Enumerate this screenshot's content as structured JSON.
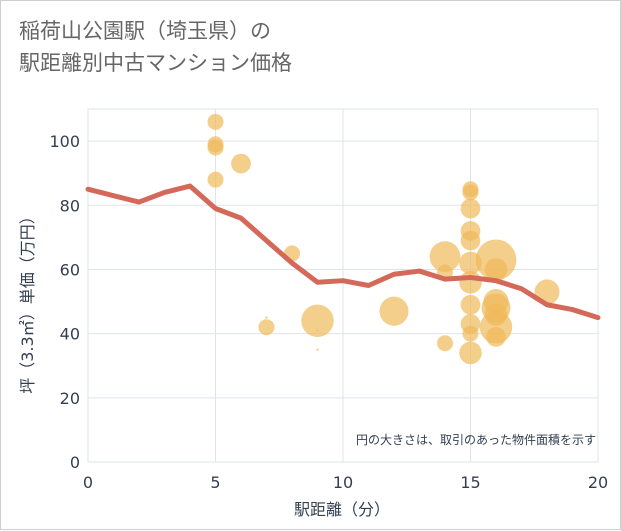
{
  "title": {
    "line1": "稲荷山公園駅（埼玉県）の",
    "line2": "駅距離別中古マンション価格"
  },
  "chart_data": {
    "type": "scatter",
    "title": "稲荷山公園駅（埼玉県）の駅距離別中古マンション価格",
    "xlabel": "駅距離（分）",
    "ylabel": "坪（3.3㎡）単価（万円）",
    "xlim": [
      0,
      20
    ],
    "ylim": [
      0,
      110
    ],
    "x_ticks": [
      0,
      5,
      10,
      15,
      20
    ],
    "y_ticks": [
      0,
      20,
      40,
      60,
      80,
      100
    ],
    "grid": true,
    "annotation": "円の大きさは、取引のあった物件面積を示す",
    "colors": {
      "bubble": "#f0b95a",
      "line": "#d4695a",
      "axis_text": "#333f50",
      "grid": "#dfe4ea"
    },
    "series": [
      {
        "type": "bubble",
        "points": [
          {
            "x": 5,
            "y": 106,
            "s": 1
          },
          {
            "x": 5,
            "y": 99,
            "s": 1
          },
          {
            "x": 5,
            "y": 98,
            "s": 1
          },
          {
            "x": 5,
            "y": 88,
            "s": 1
          },
          {
            "x": 6,
            "y": 93,
            "s": 2
          },
          {
            "x": 7,
            "y": 45,
            "s": 0.2
          },
          {
            "x": 7,
            "y": 42,
            "s": 1
          },
          {
            "x": 8,
            "y": 65,
            "s": 1
          },
          {
            "x": 9,
            "y": 44,
            "s": 8
          },
          {
            "x": 9,
            "y": 41,
            "s": 0.2
          },
          {
            "x": 9,
            "y": 35,
            "s": 0.2
          },
          {
            "x": 12,
            "y": 47,
            "s": 6
          },
          {
            "x": 14,
            "y": 64,
            "s": 7
          },
          {
            "x": 14,
            "y": 59,
            "s": 1
          },
          {
            "x": 14,
            "y": 37,
            "s": 1
          },
          {
            "x": 15,
            "y": 85,
            "s": 1
          },
          {
            "x": 15,
            "y": 84,
            "s": 1
          },
          {
            "x": 15,
            "y": 79,
            "s": 2
          },
          {
            "x": 15,
            "y": 72,
            "s": 2
          },
          {
            "x": 15,
            "y": 69,
            "s": 2
          },
          {
            "x": 15,
            "y": 62,
            "s": 3
          },
          {
            "x": 15,
            "y": 56,
            "s": 3
          },
          {
            "x": 15,
            "y": 49,
            "s": 2
          },
          {
            "x": 15,
            "y": 43,
            "s": 2
          },
          {
            "x": 15,
            "y": 40,
            "s": 1
          },
          {
            "x": 15,
            "y": 34,
            "s": 3
          },
          {
            "x": 16,
            "y": 63,
            "s": 14
          },
          {
            "x": 16,
            "y": 60,
            "s": 3
          },
          {
            "x": 16,
            "y": 50,
            "s": 4
          },
          {
            "x": 16,
            "y": 48,
            "s": 6
          },
          {
            "x": 16,
            "y": 46,
            "s": 3
          },
          {
            "x": 16,
            "y": 42,
            "s": 8
          },
          {
            "x": 16,
            "y": 39,
            "s": 2
          },
          {
            "x": 18,
            "y": 53,
            "s": 4
          }
        ]
      },
      {
        "type": "line",
        "x": [
          0,
          1,
          2,
          3,
          4,
          5,
          6,
          7,
          8,
          9,
          10,
          11,
          12,
          13,
          14,
          15,
          16,
          17,
          18,
          19,
          20
        ],
        "y": [
          85,
          83,
          81,
          84,
          86,
          79,
          76,
          69,
          62,
          56,
          56.5,
          55,
          58.5,
          59.5,
          57,
          57.5,
          56.5,
          54,
          49,
          47.5,
          45
        ]
      }
    ]
  }
}
